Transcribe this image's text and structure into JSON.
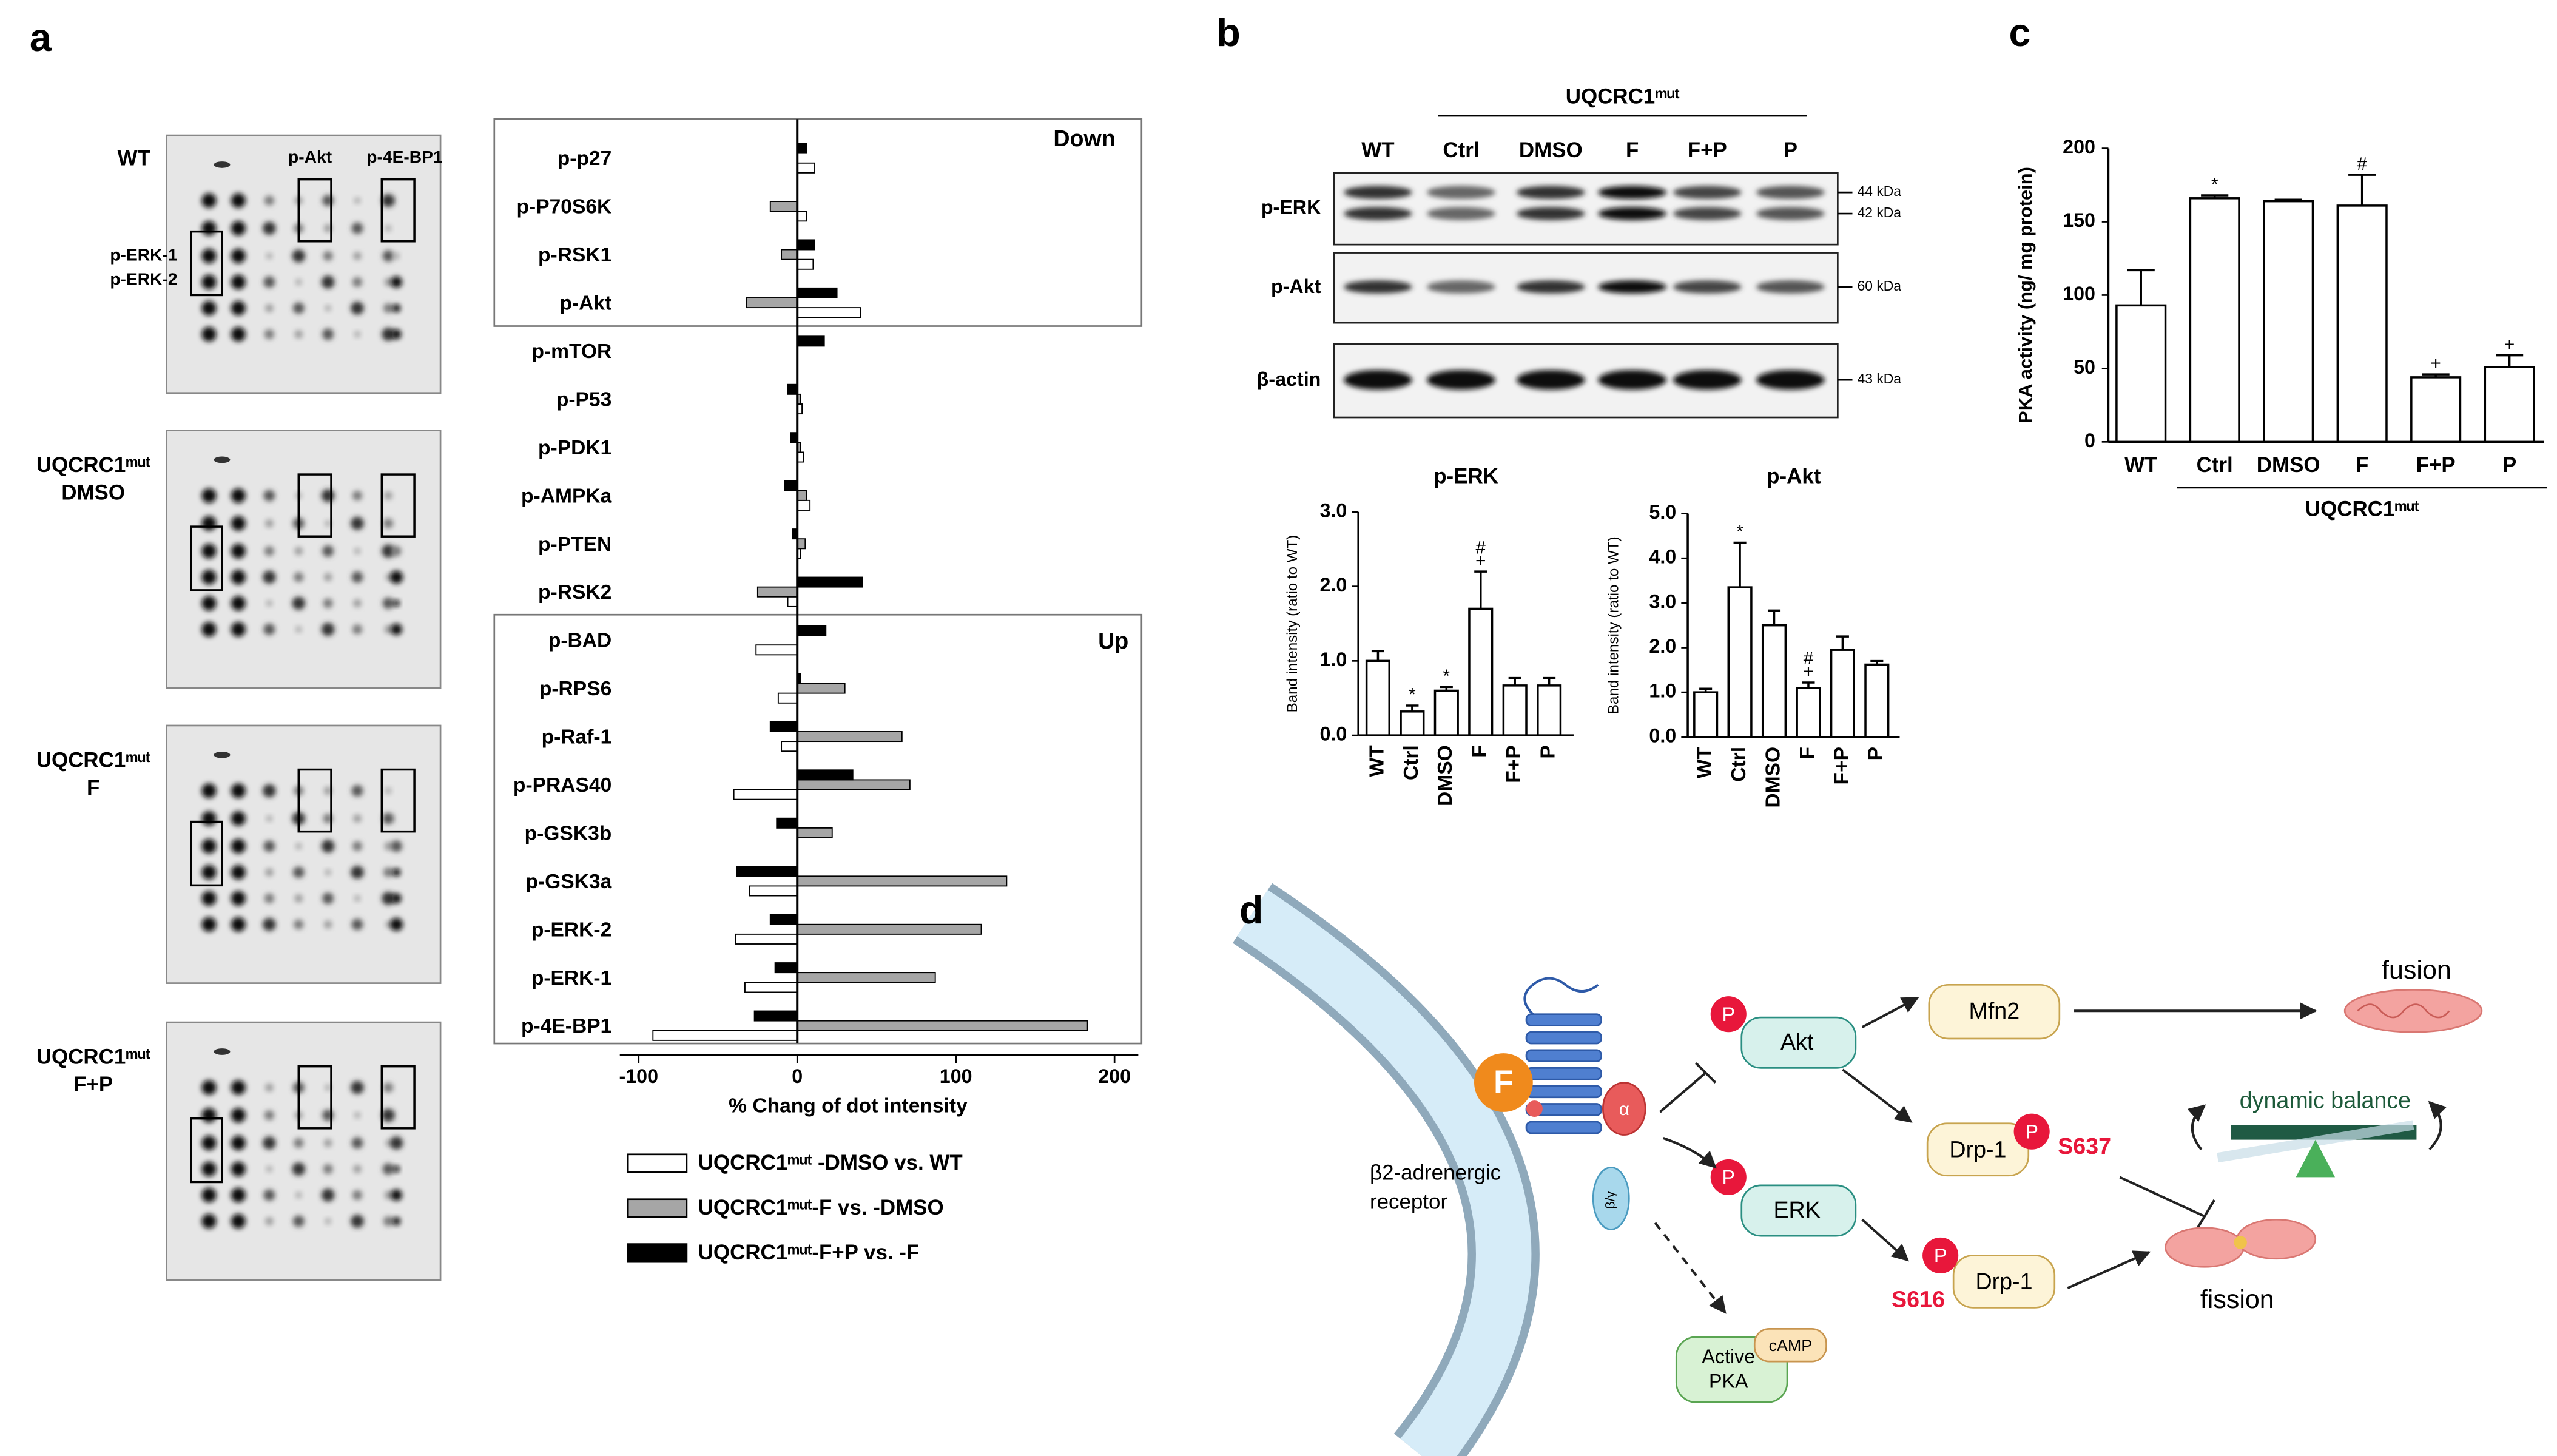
{
  "panel_labels": [
    "a",
    "b",
    "c",
    "d"
  ],
  "dot_blots": {
    "samples": [
      {
        "lines": [
          "WT"
        ]
      },
      {
        "lines": [
          "UQCRC1ᵐᵘᵗ",
          "DMSO"
        ]
      },
      {
        "lines": [
          "UQCRC1ᵐᵘᵗ",
          "F"
        ]
      },
      {
        "lines": [
          "UQCRC1ᵐᵘᵗ",
          "F+P"
        ]
      }
    ],
    "spot_labels": [
      "p-Akt",
      "p-4E-BP1",
      "p-ERK-1",
      "p-ERK-2"
    ]
  },
  "western_blot": {
    "group_label": "UQCRC1ᵐᵘᵗ",
    "lanes": [
      "WT",
      "Ctrl",
      "DMSO",
      "F",
      "F+P",
      "P"
    ],
    "rows": [
      {
        "label": "p-ERK",
        "markers": [
          "44 kDa",
          "42 kDa"
        ]
      },
      {
        "label": "p-Akt",
        "markers": [
          "60 kDa"
        ]
      },
      {
        "label": "β-actin",
        "markers": [
          "43 kDa"
        ]
      }
    ]
  },
  "chart_data": [
    {
      "type": "bar",
      "orientation": "horizontal",
      "xlabel": "% Chang of dot intensity",
      "categories": [
        "p-p27",
        "p-P70S6K",
        "p-RSK1",
        "p-Akt",
        "p-mTOR",
        "p-P53",
        "p-PDK1",
        "p-AMPKa",
        "p-PTEN",
        "p-RSK2",
        "p-BAD",
        "p-RPS6",
        "p-Raf-1",
        "p-PRAS40",
        "p-GSK3b",
        "p-GSK3a",
        "p-ERK-2",
        "p-ERK-1",
        "p-4E-BP1"
      ],
      "series": [
        {
          "name": "UQCRC1ᵐᵘᵗ -DMSO vs. WT",
          "color": "#ffffff",
          "values": [
            11,
            6,
            10,
            40,
            0,
            3,
            4,
            8,
            2,
            -6,
            -26,
            -12,
            -10,
            -40,
            0,
            -30,
            -39,
            -33,
            -91
          ]
        },
        {
          "name": "UQCRC1ᵐᵘᵗ-F vs. -DMSO",
          "color": "#a6a6a6",
          "values": [
            0,
            -17,
            -10,
            -32,
            0,
            2,
            2,
            6,
            5,
            -25,
            0,
            30,
            66,
            71,
            22,
            132,
            116,
            87,
            183
          ]
        },
        {
          "name": "UQCRC1ᵐᵘᵗ-F+P vs. -F",
          "color": "#000000",
          "values": [
            6,
            0,
            11,
            25,
            17,
            -6,
            -4,
            -8,
            -3,
            41,
            18,
            2,
            -17,
            35,
            -13,
            -38,
            -17,
            -14,
            -27
          ]
        }
      ],
      "xlim": [
        -190,
        215
      ],
      "xticks": [
        -100,
        0,
        100,
        200
      ],
      "annotations": [
        "Down",
        "Up"
      ]
    },
    {
      "type": "bar",
      "title": "p-ERK",
      "ylabel": "Band intensity (ratio to WT)",
      "categories": [
        "WT",
        "Ctrl",
        "DMSO",
        "F",
        "F+P",
        "P"
      ],
      "values": [
        1.0,
        0.32,
        0.6,
        1.7,
        0.67,
        0.67
      ],
      "errors": [
        0.13,
        0.08,
        0.05,
        0.5,
        0.1,
        0.1
      ],
      "color": "#ffffff",
      "ylim": [
        0,
        3
      ],
      "yticks": [
        {
          "value": 0,
          "label": "0.0"
        },
        {
          "value": 1,
          "label": "1.0"
        },
        {
          "value": 2,
          "label": "2.0"
        },
        {
          "value": 3,
          "label": "3.0"
        }
      ],
      "annotations": [
        {
          "text": "*",
          "category": "Ctrl"
        },
        {
          "text": "*",
          "category": "DMSO"
        },
        {
          "text": "+",
          "category": "F"
        },
        {
          "text": "#",
          "category": "F"
        }
      ]
    },
    {
      "type": "bar",
      "title": "p-Akt",
      "ylabel": "Band intensity (ratio to WT)",
      "categories": [
        "WT",
        "Ctrl",
        "DMSO",
        "F",
        "F+P",
        "P"
      ],
      "values": [
        1.0,
        3.35,
        2.5,
        1.1,
        1.95,
        1.62
      ],
      "errors": [
        0.08,
        1.0,
        0.33,
        0.12,
        0.3,
        0.08
      ],
      "color": "#ffffff",
      "ylim": [
        0,
        5
      ],
      "yticks": [
        {
          "value": 0,
          "label": "0.0"
        },
        {
          "value": 1,
          "label": "1.0"
        },
        {
          "value": 2,
          "label": "2.0"
        },
        {
          "value": 3,
          "label": "3.0"
        },
        {
          "value": 4,
          "label": "4.0"
        },
        {
          "value": 5,
          "label": "5.0"
        }
      ],
      "annotations": [
        {
          "text": "*",
          "category": "Ctrl"
        },
        {
          "text": "+",
          "category": "F"
        },
        {
          "text": "#",
          "category": "F"
        }
      ]
    },
    {
      "type": "bar",
      "ylabel": "PKA activity (ng/ mg protein)",
      "categories": [
        "WT",
        "Ctrl",
        "DMSO",
        "F",
        "F+P",
        "P"
      ],
      "values": [
        93,
        166,
        164,
        161,
        44,
        51
      ],
      "errors": [
        24,
        2,
        1,
        21,
        2,
        8
      ],
      "color": "#ffffff",
      "ylim": [
        0,
        200
      ],
      "yticks": [
        0,
        50,
        100,
        150,
        200
      ],
      "group_label": "UQCRC1ᵐᵘᵗ",
      "annotations": [
        {
          "text": "*",
          "category": "Ctrl"
        },
        {
          "text": "#",
          "category": "F"
        },
        {
          "text": "+",
          "category": "F+P"
        },
        {
          "text": "+",
          "category": "P"
        }
      ]
    }
  ],
  "diagram": {
    "receptor_label": [
      "β2-adrenergic",
      "receptor"
    ],
    "ligand": "F",
    "g_alpha": "α",
    "g_beta_gamma": "β/γ",
    "phospho_labels": [
      "P",
      "P",
      "P",
      "P"
    ],
    "nodes": {
      "akt": "Akt",
      "erk": "ERK",
      "mfn2": "Mfn2",
      "drp1_s637": "Drp-1",
      "drp1_s616": "Drp-1",
      "pka": [
        "Active",
        "PKA"
      ],
      "camp": "cAMP"
    },
    "sites": [
      "S637",
      "S616"
    ],
    "outcomes": {
      "fusion": "fusion",
      "fission": "fission",
      "balance": "dynamic balance"
    }
  }
}
